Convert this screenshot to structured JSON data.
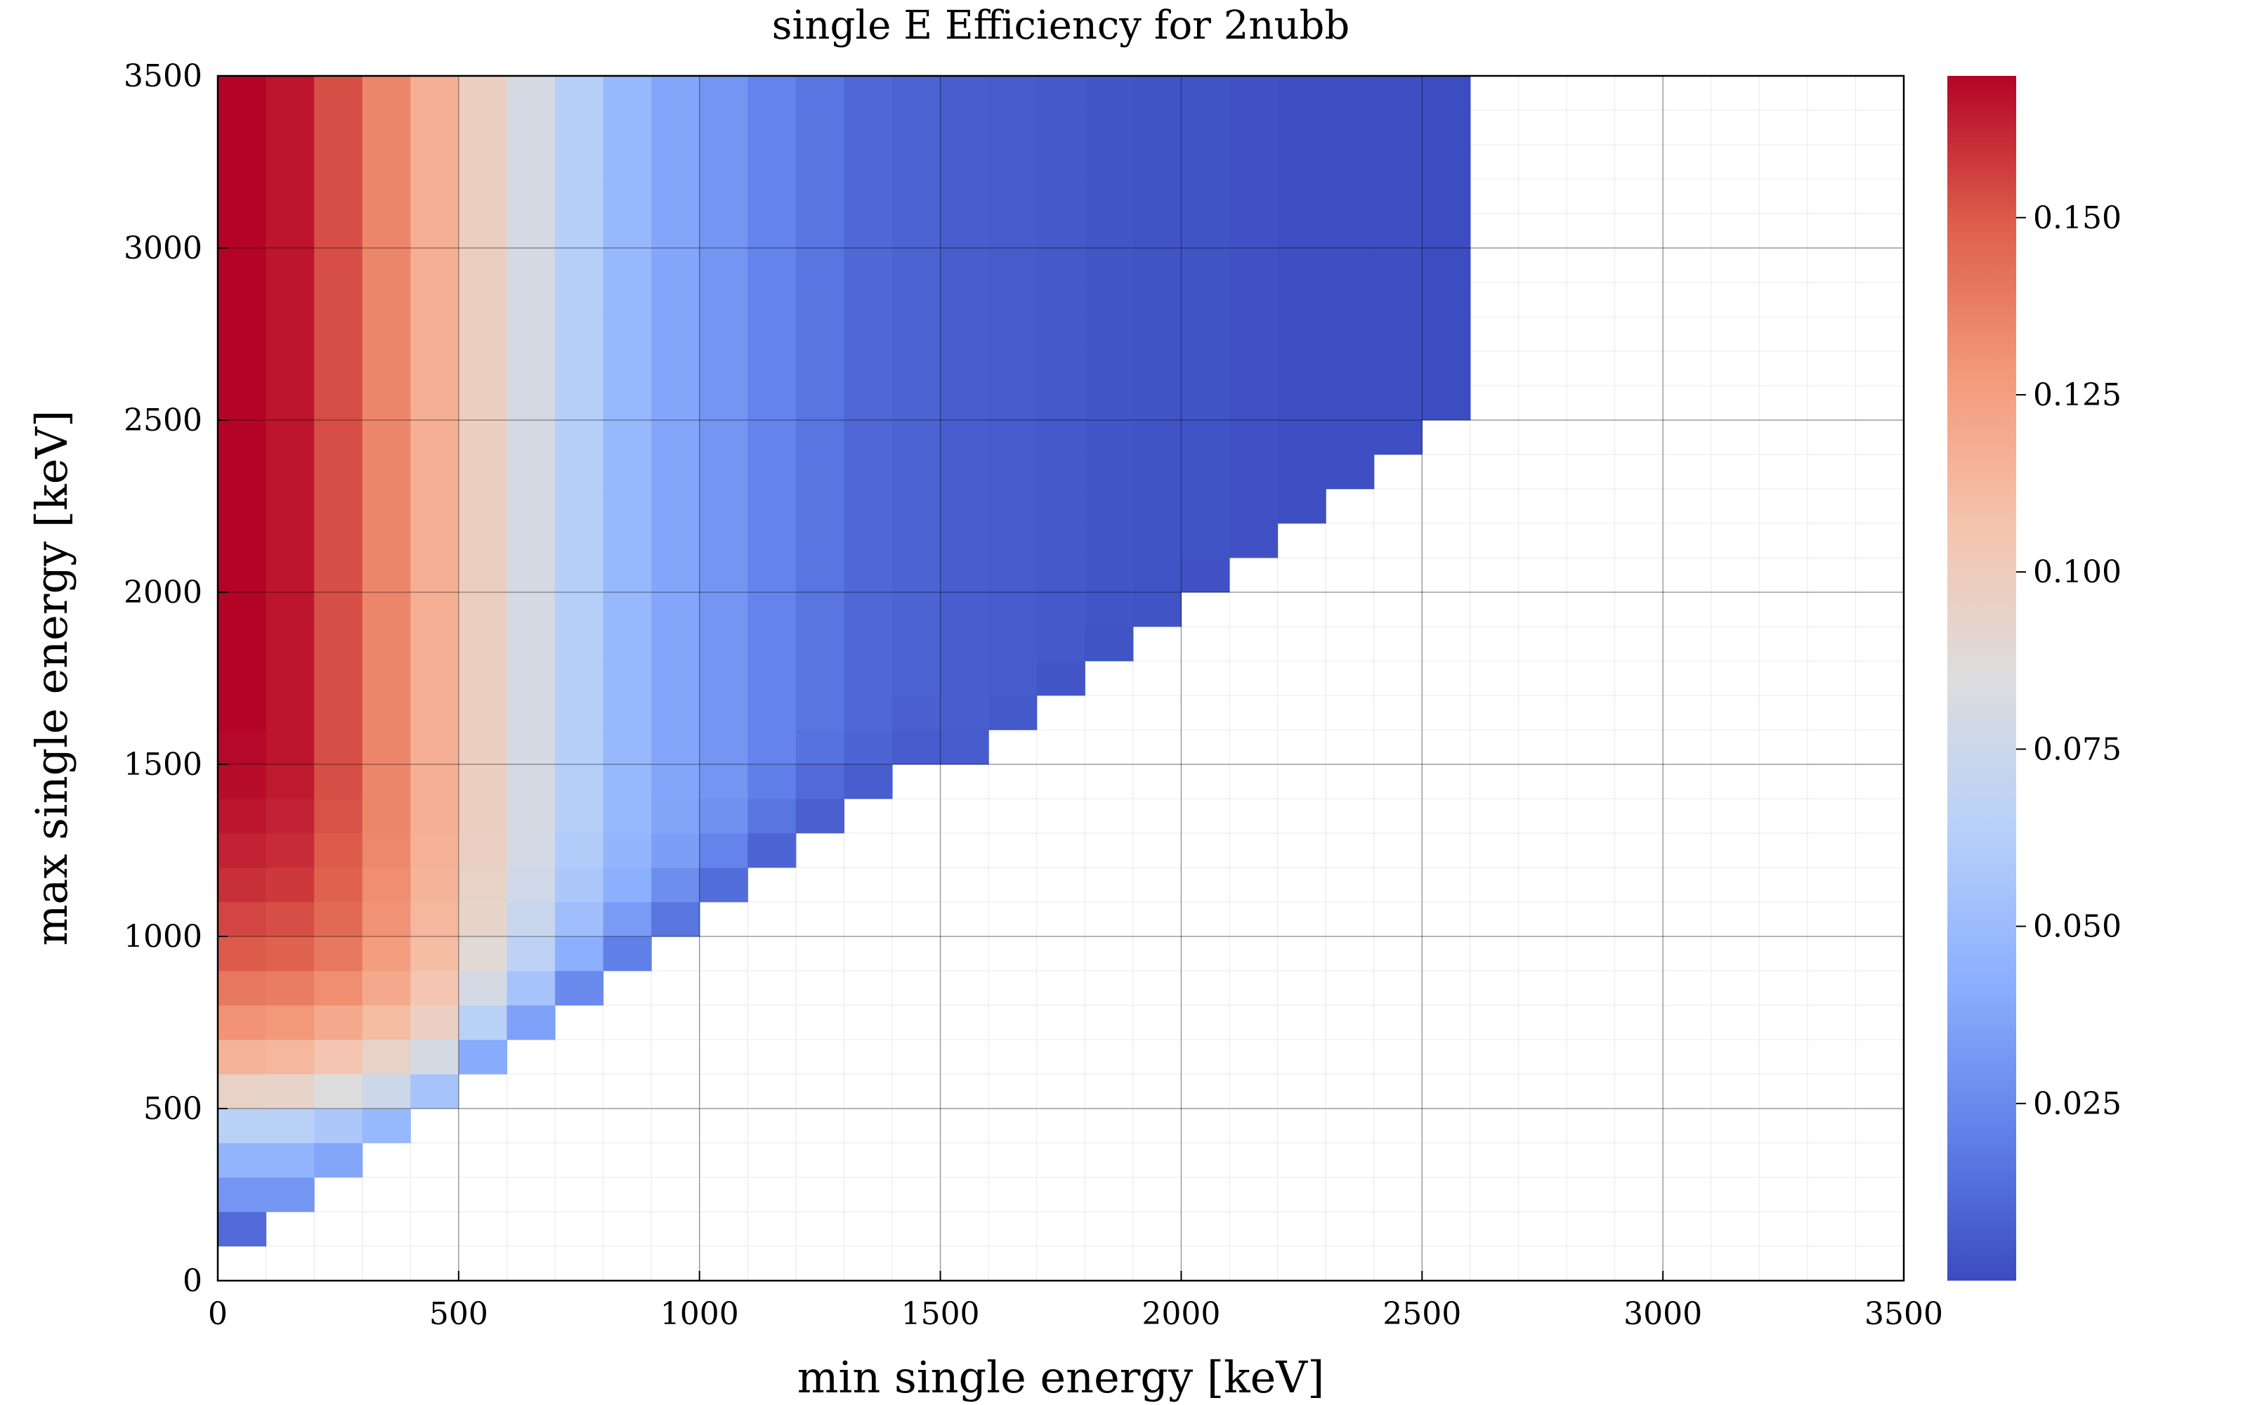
{
  "chart_data": {
    "type": "heatmap",
    "title": "single E Efficiency for 2nubb",
    "xlabel": "min single energy [keV]",
    "ylabel": "max single energy [keV]",
    "xlim": [
      0,
      3500
    ],
    "ylim": [
      0,
      3500
    ],
    "xticks": [
      "0",
      "500",
      "1000",
      "1500",
      "2000",
      "2500",
      "3000",
      "3500"
    ],
    "yticks": [
      "0",
      "500",
      "1000",
      "1500",
      "2000",
      "2500",
      "3000",
      "3500"
    ],
    "bin_width_x": 100,
    "bin_height_y": 100,
    "grid": true,
    "colormap": "coolwarm",
    "colorbar": {
      "min": 0.0,
      "max": 0.17,
      "ticks": [
        "0.025",
        "0.050",
        "0.075",
        "0.100",
        "0.125",
        "0.150"
      ],
      "tick_values": [
        0.025,
        0.05,
        0.075,
        0.1,
        0.125,
        0.15
      ]
    },
    "cells": {
      "description_rows": "for each min-energy column (bin start), efficiency vs max-energy bins start",
      "columns": [
        {
          "x": 0,
          "y_start": 100,
          "y_end": 3500,
          "profile": [
            0.012,
            0.03,
            0.045,
            0.065,
            0.095,
            0.115,
            0.13,
            0.14,
            0.15,
            0.155,
            0.16,
            0.163,
            0.166,
            0.168,
            0.169,
            0.17
          ]
        },
        {
          "x": 100,
          "y_start": 200,
          "y_end": 3500,
          "profile": [
            0.03,
            0.045,
            0.065,
            0.093,
            0.113,
            0.128,
            0.138,
            0.148,
            0.153,
            0.158,
            0.161,
            0.163,
            0.165,
            0.166
          ]
        },
        {
          "x": 200,
          "y_start": 300,
          "y_end": 3500,
          "profile": [
            0.038,
            0.058,
            0.085,
            0.105,
            0.12,
            0.132,
            0.14,
            0.145,
            0.148,
            0.15,
            0.152,
            0.153
          ]
        },
        {
          "x": 300,
          "y_start": 400,
          "y_end": 3500,
          "profile": [
            0.048,
            0.075,
            0.095,
            0.11,
            0.12,
            0.126,
            0.13,
            0.132,
            0.134,
            0.135
          ]
        },
        {
          "x": 400,
          "y_start": 500,
          "y_end": 3500,
          "profile": [
            0.055,
            0.08,
            0.097,
            0.105,
            0.11,
            0.113,
            0.115,
            0.116,
            0.117
          ]
        },
        {
          "x": 500,
          "y_start": 600,
          "y_end": 3500,
          "profile": [
            0.04,
            0.065,
            0.08,
            0.088,
            0.093,
            0.095,
            0.097,
            0.098
          ]
        },
        {
          "x": 600,
          "y_start": 700,
          "y_end": 3500,
          "profile": [
            0.035,
            0.055,
            0.067,
            0.073,
            0.077,
            0.079,
            0.08
          ]
        },
        {
          "x": 700,
          "y_start": 800,
          "y_end": 3500,
          "profile": [
            0.025,
            0.042,
            0.052,
            0.058,
            0.061,
            0.063
          ]
        },
        {
          "x": 800,
          "y_start": 900,
          "y_end": 3500,
          "profile": [
            0.02,
            0.033,
            0.042,
            0.046,
            0.048
          ]
        },
        {
          "x": 900,
          "y_start": 1000,
          "y_end": 3500,
          "profile": [
            0.016,
            0.027,
            0.034,
            0.037,
            0.038
          ]
        },
        {
          "x": 1000,
          "y_start": 1100,
          "y_end": 3500,
          "profile": [
            0.013,
            0.022,
            0.028,
            0.03
          ]
        },
        {
          "x": 1100,
          "y_start": 1200,
          "y_end": 3500,
          "profile": [
            0.01,
            0.016,
            0.02,
            0.022
          ]
        },
        {
          "x": 1200,
          "y_start": 1300,
          "y_end": 3500,
          "profile": [
            0.008,
            0.012,
            0.015,
            0.016
          ]
        },
        {
          "x": 1300,
          "y_start": 1400,
          "y_end": 3500,
          "profile": [
            0.007,
            0.01,
            0.011
          ]
        },
        {
          "x": 1400,
          "y_start": 1500,
          "y_end": 3500,
          "profile": [
            0.006,
            0.008,
            0.009
          ]
        },
        {
          "x": 1500,
          "y_start": 1500,
          "y_end": 3500,
          "profile": [
            0.006,
            0.007
          ]
        },
        {
          "x": 1600,
          "y_start": 1600,
          "y_end": 3500,
          "profile": [
            0.005,
            0.006
          ]
        },
        {
          "x": 1700,
          "y_start": 1700,
          "y_end": 3500,
          "profile": [
            0.004,
            0.005
          ]
        },
        {
          "x": 1800,
          "y_start": 1800,
          "y_end": 3500,
          "profile": [
            0.003,
            0.004
          ]
        },
        {
          "x": 1900,
          "y_start": 1900,
          "y_end": 3500,
          "profile": [
            0.003,
            0.003
          ]
        },
        {
          "x": 2000,
          "y_start": 2000,
          "y_end": 3500,
          "profile": [
            0.002,
            0.003
          ]
        },
        {
          "x": 2100,
          "y_start": 2100,
          "y_end": 3500,
          "profile": [
            0.002
          ]
        },
        {
          "x": 2200,
          "y_start": 2200,
          "y_end": 3500,
          "profile": [
            0.001
          ]
        },
        {
          "x": 2300,
          "y_start": 2300,
          "y_end": 3500,
          "profile": [
            0.001
          ]
        },
        {
          "x": 2400,
          "y_start": 2400,
          "y_end": 3500,
          "profile": [
            0.001
          ]
        },
        {
          "x": 2500,
          "y_start": 2500,
          "y_end": 3500,
          "profile": [
            0.0005
          ]
        }
      ]
    }
  }
}
